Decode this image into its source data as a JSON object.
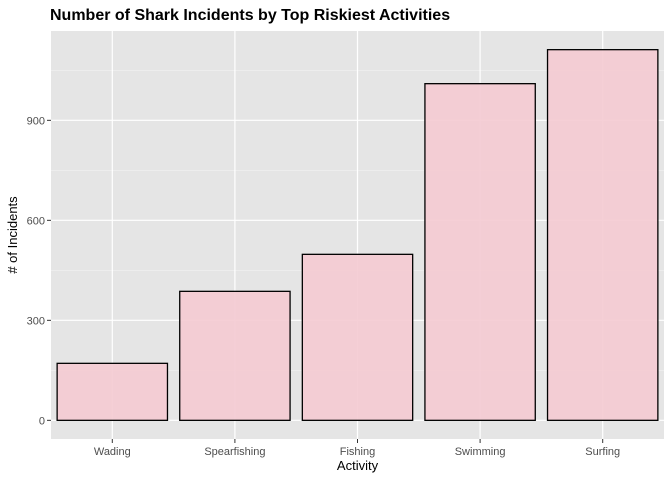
{
  "chart_data": {
    "type": "bar",
    "title": "Number of Shark Incidents by Top Riskiest Activities",
    "xlabel": "Activity",
    "ylabel": "# of Incidents",
    "categories": [
      "Wading",
      "Spearfishing",
      "Fishing",
      "Swimming",
      "Surfing"
    ],
    "values": [
      171,
      387,
      498,
      1010,
      1112
    ],
    "ylim": [
      -56,
      1168
    ],
    "yticks": [
      0,
      300,
      600,
      900
    ],
    "ytick_labels": [
      "0",
      "300",
      "600",
      "900"
    ],
    "grid": true,
    "legend": "none",
    "colors": {
      "bar_fill": "#f4cad2",
      "bar_stroke": "#000000",
      "panel_background": "#e5e5e5",
      "grid_major": "#ffffff",
      "grid_minor": "#f2f2f2"
    }
  }
}
